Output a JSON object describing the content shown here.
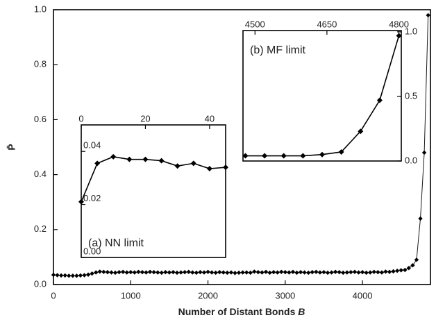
{
  "chart_data": [
    {
      "type": "line",
      "x_label": "Number of Distant Bonds",
      "x_label_var": "B",
      "y_label": "P̄",
      "xlim": [
        0,
        4880
      ],
      "xticks": [
        0,
        1000,
        2000,
        3000,
        4000
      ],
      "ylim": [
        0,
        1
      ],
      "yticks": [
        {
          "value": 0,
          "label": "0.0"
        },
        {
          "value": 0.2,
          "label": "0.2"
        },
        {
          "value": 0.4,
          "label": "0.4"
        },
        {
          "value": 0.6,
          "label": "0.6"
        },
        {
          "value": 0.8,
          "label": "0.8"
        },
        {
          "value": 1,
          "label": "1.0"
        }
      ],
      "x": [
        0,
        50,
        100,
        150,
        200,
        250,
        300,
        350,
        400,
        450,
        500,
        550,
        600,
        650,
        700,
        750,
        800,
        850,
        900,
        950,
        1000,
        1050,
        1100,
        1150,
        1200,
        1250,
        1300,
        1350,
        1400,
        1450,
        1500,
        1550,
        1600,
        1650,
        1700,
        1750,
        1800,
        1850,
        1900,
        1950,
        2000,
        2050,
        2100,
        2150,
        2200,
        2250,
        2300,
        2350,
        2400,
        2450,
        2500,
        2550,
        2600,
        2650,
        2700,
        2750,
        2800,
        2850,
        2900,
        2950,
        3000,
        3050,
        3100,
        3150,
        3200,
        3250,
        3300,
        3350,
        3400,
        3450,
        3500,
        3550,
        3600,
        3650,
        3700,
        3750,
        3800,
        3850,
        3900,
        3950,
        4000,
        4050,
        4100,
        4150,
        4200,
        4250,
        4300,
        4350,
        4400,
        4450,
        4500,
        4550,
        4600,
        4650,
        4700,
        4750,
        4800,
        4850
      ],
      "series": [
        {
          "color": "#000000",
          "values": [
            0.035,
            0.034,
            0.033,
            0.033,
            0.032,
            0.032,
            0.032,
            0.033,
            0.034,
            0.036,
            0.04,
            0.044,
            0.047,
            0.046,
            0.045,
            0.044,
            0.043,
            0.045,
            0.046,
            0.044,
            0.045,
            0.044,
            0.046,
            0.045,
            0.044,
            0.046,
            0.045,
            0.044,
            0.043,
            0.045,
            0.044,
            0.045,
            0.043,
            0.044,
            0.045,
            0.046,
            0.044,
            0.043,
            0.045,
            0.044,
            0.046,
            0.044,
            0.043,
            0.045,
            0.044,
            0.043,
            0.044,
            0.042,
            0.043,
            0.044,
            0.044,
            0.043,
            0.047,
            0.045,
            0.044,
            0.046,
            0.043,
            0.045,
            0.044,
            0.046,
            0.045,
            0.044,
            0.046,
            0.043,
            0.045,
            0.044,
            0.043,
            0.045,
            0.046,
            0.044,
            0.045,
            0.043,
            0.044,
            0.046,
            0.045,
            0.043,
            0.044,
            0.045,
            0.046,
            0.044,
            0.045,
            0.043,
            0.044,
            0.046,
            0.045,
            0.044,
            0.047,
            0.046,
            0.048,
            0.05,
            0.052,
            0.053,
            0.06,
            0.07,
            0.09,
            0.24,
            0.48,
            0.98
          ]
        }
      ]
    },
    {
      "type": "line",
      "annotation": "(a) NN limit",
      "xlim": [
        0,
        45
      ],
      "xticks": [
        0,
        20,
        40
      ],
      "ylim": [
        0,
        0.05
      ],
      "yticks": [
        {
          "value": 0,
          "label": "0.00"
        },
        {
          "value": 0.02,
          "label": "0.02"
        },
        {
          "value": 0.04,
          "label": "0.04"
        }
      ],
      "x": [
        0,
        5,
        10,
        15,
        20,
        25,
        30,
        35,
        40,
        45
      ],
      "series": [
        {
          "color": "#000000",
          "values": [
            0.021,
            0.0355,
            0.038,
            0.037,
            0.037,
            0.0365,
            0.0345,
            0.0355,
            0.0335,
            0.034
          ]
        }
      ]
    },
    {
      "type": "line",
      "annotation": "(b) MF limit",
      "xlim": [
        4475,
        4805
      ],
      "xticks": [
        4500,
        4650,
        4800
      ],
      "ylim": [
        0,
        1.01
      ],
      "yticks": [
        {
          "value": 0,
          "label": "0.0"
        },
        {
          "value": 0.5,
          "label": "0.5"
        },
        {
          "value": 1,
          "label": "1.0"
        }
      ],
      "x": [
        4480,
        4520,
        4560,
        4600,
        4640,
        4680,
        4720,
        4760,
        4800
      ],
      "series": [
        {
          "color": "#000000",
          "values": [
            0.04,
            0.04,
            0.04,
            0.04,
            0.05,
            0.07,
            0.23,
            0.47,
            0.97
          ]
        }
      ]
    }
  ]
}
